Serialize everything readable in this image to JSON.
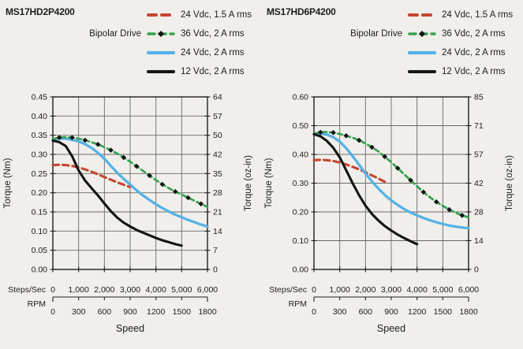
{
  "colors": {
    "red": "#c64430",
    "green": "#35a24e",
    "blue": "#55b2e6",
    "black": "#151515",
    "grid": "#6a6a6a",
    "axis": "#1f1f1f",
    "background": "#f1efeb"
  },
  "chart_data": [
    {
      "type": "line",
      "title": "MS17HD2P4200",
      "drive_label": "Bipolar Drive",
      "x_axis": {
        "steps_label": "Steps/Sec",
        "steps_ticks": [
          "0",
          "1,000",
          "2,000",
          "3,000",
          "4,000",
          "5,000",
          "6,000"
        ],
        "rpm_label": "RPM",
        "rpm_ticks": [
          "0",
          "300",
          "600",
          "900",
          "1200",
          "1500",
          "1800"
        ],
        "title": "Speed",
        "max": 6000
      },
      "y_left": {
        "label": "Torque (Nm)",
        "max": 0.45,
        "ticks": [
          "0.45",
          "0.40",
          "0.35",
          "0.30",
          "0.25",
          "0.20",
          "0.15",
          "0.10",
          "0.05",
          "0.00"
        ]
      },
      "y_right": {
        "label": "Torque (oz-in)",
        "ticks": [
          "64",
          "57",
          "50",
          "42",
          "35",
          "28",
          "21",
          "14",
          "7",
          "0"
        ]
      },
      "series": [
        {
          "name": "24 Vdc, 1.5 A rms",
          "color_key": "red",
          "style": "dashed",
          "dash": "7.5 5",
          "width": 3.1,
          "z": 1,
          "points": [
            [
              0,
              0.272
            ],
            [
              250,
              0.273
            ],
            [
              500,
              0.272
            ],
            [
              750,
              0.27
            ],
            [
              1000,
              0.266
            ],
            [
              1250,
              0.261
            ],
            [
              1500,
              0.255
            ],
            [
              1750,
              0.248
            ],
            [
              2000,
              0.241
            ],
            [
              2250,
              0.234
            ],
            [
              2500,
              0.227
            ],
            [
              2750,
              0.221
            ],
            [
              3000,
              0.215
            ]
          ]
        },
        {
          "name": "36 Vdc, 2 A rms",
          "color_key": "green",
          "style": "dash-diamond",
          "dash": "6 4.2",
          "width": 2.7,
          "marker": "diamond",
          "z": 3,
          "points": [
            [
              0,
              0.34
            ],
            [
              250,
              0.344
            ],
            [
              500,
              0.345
            ],
            [
              750,
              0.344
            ],
            [
              1000,
              0.341
            ],
            [
              1250,
              0.337
            ],
            [
              1500,
              0.332
            ],
            [
              1750,
              0.326
            ],
            [
              2000,
              0.319
            ],
            [
              2250,
              0.311
            ],
            [
              2500,
              0.302
            ],
            [
              2750,
              0.292
            ],
            [
              3000,
              0.281
            ],
            [
              3250,
              0.269
            ],
            [
              3500,
              0.257
            ],
            [
              3750,
              0.245
            ],
            [
              4000,
              0.233
            ],
            [
              4250,
              0.222
            ],
            [
              4500,
              0.212
            ],
            [
              4750,
              0.203
            ],
            [
              5000,
              0.195
            ],
            [
              5250,
              0.187
            ],
            [
              5500,
              0.179
            ],
            [
              5750,
              0.171
            ],
            [
              6000,
              0.163
            ]
          ]
        },
        {
          "name": "24 Vdc, 2 A rms",
          "color_key": "blue",
          "style": "solid",
          "width": 3.3,
          "z": 2,
          "points": [
            [
              0,
              0.34
            ],
            [
              250,
              0.341
            ],
            [
              500,
              0.341
            ],
            [
              750,
              0.338
            ],
            [
              1000,
              0.334
            ],
            [
              1250,
              0.327
            ],
            [
              1500,
              0.317
            ],
            [
              1750,
              0.304
            ],
            [
              2000,
              0.289
            ],
            [
              2250,
              0.27
            ],
            [
              2500,
              0.252
            ],
            [
              2750,
              0.236
            ],
            [
              3000,
              0.222
            ],
            [
              3250,
              0.206
            ],
            [
              3500,
              0.193
            ],
            [
              3750,
              0.181
            ],
            [
              4000,
              0.17
            ],
            [
              4250,
              0.16
            ],
            [
              4500,
              0.151
            ],
            [
              4750,
              0.143
            ],
            [
              5000,
              0.136
            ],
            [
              5250,
              0.129
            ],
            [
              5500,
              0.123
            ],
            [
              5750,
              0.117
            ],
            [
              6000,
              0.112
            ]
          ]
        },
        {
          "name": "12 Vdc, 2 A rms",
          "color_key": "black",
          "style": "solid",
          "width": 3.1,
          "z": 4,
          "points": [
            [
              0,
              0.336
            ],
            [
              250,
              0.332
            ],
            [
              500,
              0.322
            ],
            [
              750,
              0.295
            ],
            [
              1000,
              0.258
            ],
            [
              1250,
              0.232
            ],
            [
              1500,
              0.212
            ],
            [
              1750,
              0.193
            ],
            [
              2000,
              0.172
            ],
            [
              2250,
              0.152
            ],
            [
              2500,
              0.135
            ],
            [
              2750,
              0.122
            ],
            [
              3000,
              0.112
            ],
            [
              3250,
              0.103
            ],
            [
              3500,
              0.096
            ],
            [
              3750,
              0.089
            ],
            [
              4000,
              0.082
            ],
            [
              4250,
              0.076
            ],
            [
              4500,
              0.071
            ],
            [
              4750,
              0.066
            ],
            [
              5000,
              0.062
            ]
          ]
        }
      ]
    },
    {
      "type": "line",
      "title": "MS17HD6P4200",
      "drive_label": "Bipolar Drive",
      "x_axis": {
        "steps_label": "Steps/Sec",
        "steps_ticks": [
          "0",
          "1,000",
          "2,000",
          "3,000",
          "4,000",
          "5,000",
          "6,000"
        ],
        "rpm_label": "RPM",
        "rpm_ticks": [
          "0",
          "300",
          "600",
          "900",
          "1200",
          "1500",
          "1800"
        ],
        "title": "Speed",
        "max": 6000
      },
      "y_left": {
        "label": "Torque (Nm)",
        "max": 0.6,
        "ticks": [
          "0.60",
          "0.50",
          "0.40",
          "0.30",
          "0.20",
          "0.10",
          "0.00"
        ]
      },
      "y_right": {
        "label": "Torque (oz-in)",
        "ticks": [
          "85",
          "71",
          "57",
          "42",
          "28",
          "14",
          "0"
        ]
      },
      "series": [
        {
          "name": "24 Vdc, 1.5 A rms",
          "color_key": "red",
          "style": "dashed",
          "dash": "7.5 5",
          "width": 3.1,
          "z": 1,
          "points": [
            [
              0,
              0.38
            ],
            [
              250,
              0.381
            ],
            [
              500,
              0.38
            ],
            [
              750,
              0.377
            ],
            [
              1000,
              0.372
            ],
            [
              1250,
              0.365
            ],
            [
              1500,
              0.357
            ],
            [
              1750,
              0.348
            ],
            [
              2000,
              0.338
            ],
            [
              2250,
              0.327
            ],
            [
              2500,
              0.316
            ],
            [
              2750,
              0.305
            ]
          ]
        },
        {
          "name": "36 Vdc, 2 A rms",
          "color_key": "green",
          "style": "dash-diamond",
          "dash": "6 4.2",
          "width": 2.7,
          "marker": "diamond",
          "z": 3,
          "points": [
            [
              0,
              0.472
            ],
            [
              250,
              0.477
            ],
            [
              500,
              0.478
            ],
            [
              750,
              0.476
            ],
            [
              1000,
              0.471
            ],
            [
              1250,
              0.465
            ],
            [
              1500,
              0.458
            ],
            [
              1750,
              0.449
            ],
            [
              2000,
              0.438
            ],
            [
              2250,
              0.425
            ],
            [
              2500,
              0.41
            ],
            [
              2750,
              0.392
            ],
            [
              3000,
              0.373
            ],
            [
              3250,
              0.352
            ],
            [
              3500,
              0.331
            ],
            [
              3750,
              0.31
            ],
            [
              4000,
              0.289
            ],
            [
              4250,
              0.269
            ],
            [
              4500,
              0.251
            ],
            [
              4750,
              0.235
            ],
            [
              5000,
              0.221
            ],
            [
              5250,
              0.208
            ],
            [
              5500,
              0.197
            ],
            [
              5750,
              0.188
            ],
            [
              6000,
              0.181
            ]
          ]
        },
        {
          "name": "24 Vdc, 2 A rms",
          "color_key": "blue",
          "style": "solid",
          "width": 3.3,
          "z": 2,
          "points": [
            [
              0,
              0.47
            ],
            [
              250,
              0.472
            ],
            [
              500,
              0.469
            ],
            [
              750,
              0.46
            ],
            [
              1000,
              0.445
            ],
            [
              1250,
              0.422
            ],
            [
              1500,
              0.394
            ],
            [
              1750,
              0.364
            ],
            [
              2000,
              0.334
            ],
            [
              2250,
              0.306
            ],
            [
              2500,
              0.281
            ],
            [
              2750,
              0.259
            ],
            [
              3000,
              0.24
            ],
            [
              3250,
              0.224
            ],
            [
              3500,
              0.21
            ],
            [
              3750,
              0.198
            ],
            [
              4000,
              0.188
            ],
            [
              4250,
              0.179
            ],
            [
              4500,
              0.171
            ],
            [
              4750,
              0.164
            ],
            [
              5000,
              0.158
            ],
            [
              5250,
              0.153
            ],
            [
              5500,
              0.149
            ],
            [
              5750,
              0.146
            ],
            [
              6000,
              0.143
            ]
          ]
        },
        {
          "name": "12 Vdc, 2 A rms",
          "color_key": "black",
          "style": "solid",
          "width": 3.1,
          "z": 4,
          "points": [
            [
              0,
              0.47
            ],
            [
              250,
              0.463
            ],
            [
              500,
              0.447
            ],
            [
              750,
              0.423
            ],
            [
              1000,
              0.39
            ],
            [
              1250,
              0.345
            ],
            [
              1500,
              0.3
            ],
            [
              1750,
              0.258
            ],
            [
              2000,
              0.222
            ],
            [
              2250,
              0.193
            ],
            [
              2500,
              0.17
            ],
            [
              2750,
              0.151
            ],
            [
              3000,
              0.135
            ],
            [
              3250,
              0.121
            ],
            [
              3500,
              0.109
            ],
            [
              3750,
              0.098
            ],
            [
              4000,
              0.088
            ]
          ]
        }
      ]
    }
  ]
}
